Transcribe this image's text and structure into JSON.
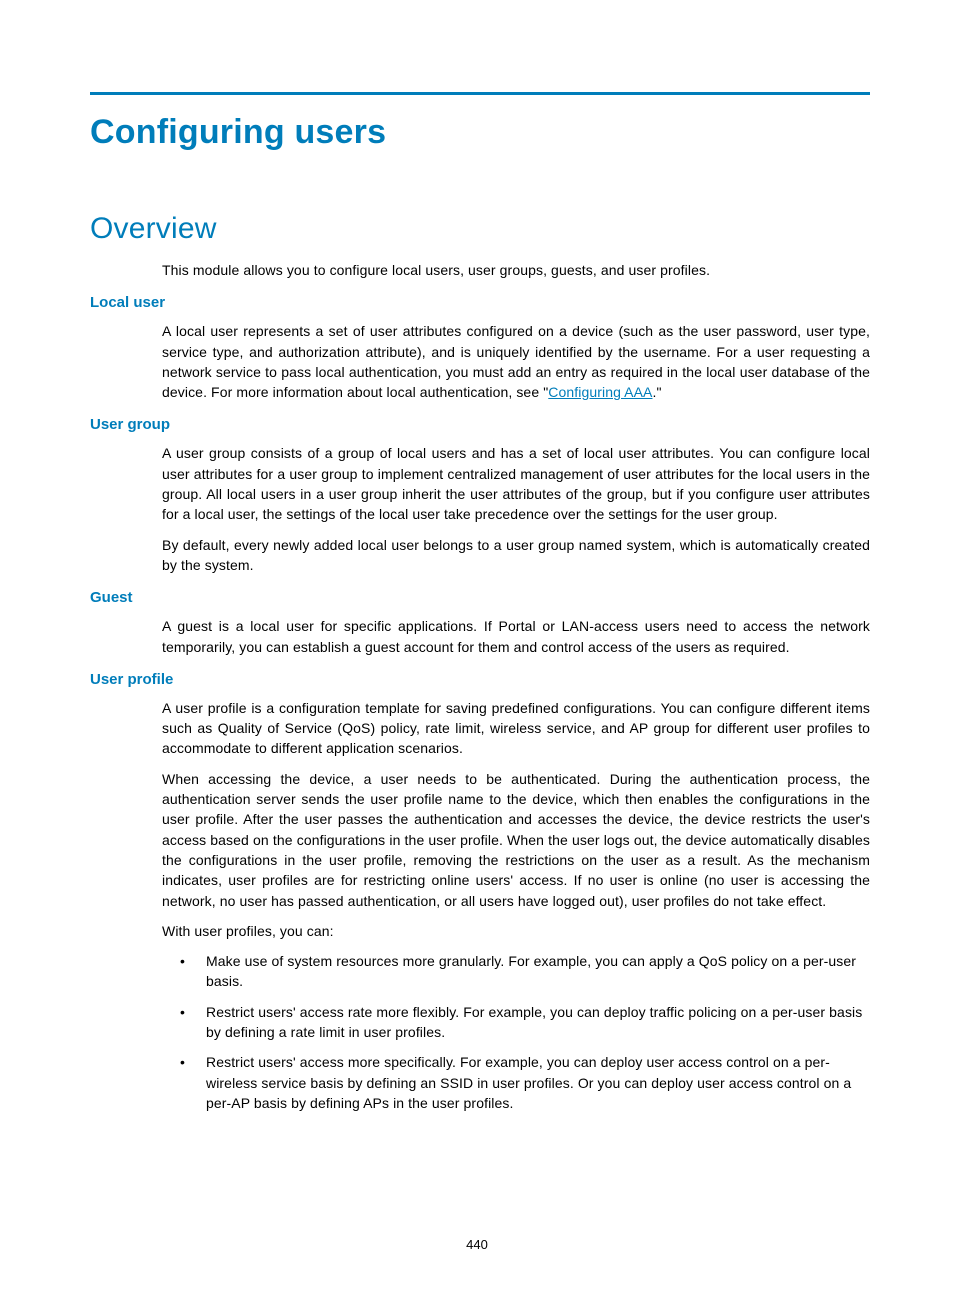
{
  "colors": {
    "accent": "#007dba",
    "text": "#000000",
    "background": "#ffffff",
    "rule": "#007dba"
  },
  "typography": {
    "h1_fontsize": 34,
    "h2_fontsize": 30,
    "h3_fontsize": 15,
    "body_fontsize": 14,
    "font_family": "Futura / Century Gothic style sans-serif"
  },
  "page_number": "440",
  "title": "Configuring users",
  "section": "Overview",
  "intro": "This module allows you to configure local users, user groups, guests, and user profiles.",
  "local_user": {
    "heading": "Local user",
    "para_before_link": "A local user represents a set of user attributes configured on a device (such as the user password, user type, service type, and authorization attribute), and is uniquely identified by the username. For a user requesting a network service to pass local authentication, you must add an entry as required in the local user database of the device. For more information about local authentication, see \"",
    "link_text": "Configuring AAA",
    "para_after_link": ".\""
  },
  "user_group": {
    "heading": "User group",
    "p1": "A user group consists of a group of local users and has a set of local user attributes. You can configure local user attributes for a user group to implement centralized management of user attributes for the local users in the group. All local users in a user group inherit the user attributes of the group, but if you configure user attributes for a local user, the settings of the local user take precedence over the settings for the user group.",
    "p2": "By default, every newly added local user belongs to a user group named system, which is automatically created by the system."
  },
  "guest": {
    "heading": "Guest",
    "p1": "A guest is a local user for specific applications. If Portal or LAN-access users need to access the network temporarily, you can establish a guest account for them and control access of the users as required."
  },
  "user_profile": {
    "heading": "User profile",
    "p1": "A user profile is a configuration template for saving predefined configurations. You can configure different items such as Quality of Service (QoS) policy, rate limit, wireless service, and AP group for different user profiles to accommodate to different application scenarios.",
    "p2": "When accessing the device, a user needs to be authenticated. During the authentication process, the authentication server sends the user profile name to the device, which then enables the configurations in the user profile. After the user passes the authentication and accesses the device, the device restricts the user's access based on the configurations in the user profile. When the user logs out, the device automatically disables the configurations in the user profile, removing the restrictions on the user as a result. As the mechanism indicates, user profiles are for restricting online users' access. If no user is online (no user is accessing the network, no user has passed authentication, or all users have logged out), user profiles do not take effect.",
    "p3": "With user profiles, you can:",
    "bullets": [
      "Make use of system resources more granularly. For example, you can apply a QoS policy on a per-user basis.",
      "Restrict users' access rate more flexibly. For example, you can deploy traffic policing on a per-user basis by defining a rate limit in user profiles.",
      "Restrict users' access more specifically. For example, you can deploy user access control on a per-wireless service basis by defining an SSID in user profiles. Or you can deploy user access control on a per-AP basis by defining APs in the user profiles."
    ]
  }
}
